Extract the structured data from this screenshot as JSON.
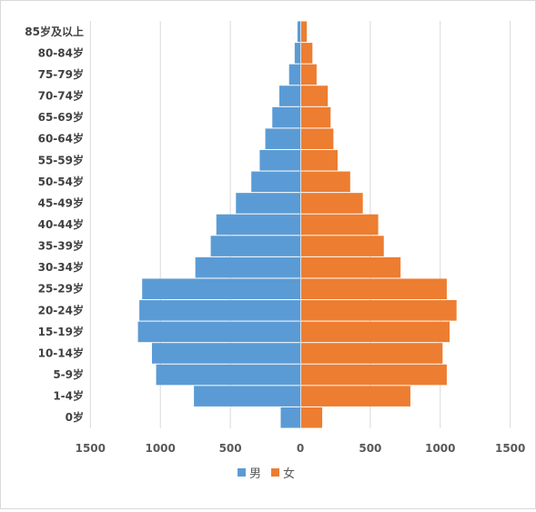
{
  "chart_data": {
    "type": "bar",
    "orientation": "horizontal",
    "categories": [
      "0岁",
      "1-4岁",
      "5-9岁",
      "10-14岁",
      "15-19岁",
      "20-24岁",
      "25-29岁",
      "30-34岁",
      "35-39岁",
      "40-44岁",
      "45-49岁",
      "50-54岁",
      "55-59岁",
      "60-64岁",
      "65-69岁",
      "70-74岁",
      "75-79岁",
      "80-84岁",
      "85岁及以上"
    ],
    "series": [
      {
        "name": "男",
        "color": "#5b9bd5",
        "values": [
          140,
          760,
          1030,
          1060,
          1160,
          1150,
          1130,
          750,
          640,
          600,
          460,
          350,
          290,
          250,
          200,
          150,
          80,
          40,
          20
        ]
      },
      {
        "name": "女",
        "color": "#ed7d31",
        "values": [
          150,
          780,
          1040,
          1010,
          1060,
          1110,
          1040,
          710,
          590,
          550,
          440,
          350,
          260,
          230,
          210,
          190,
          110,
          80,
          40
        ]
      }
    ],
    "x_ticks": [
      "1500",
      "1000",
      "500",
      "0",
      "500",
      "1000",
      "1500"
    ],
    "xlim": [
      -1500,
      1500
    ],
    "grid": true,
    "legend_position": "bottom"
  }
}
